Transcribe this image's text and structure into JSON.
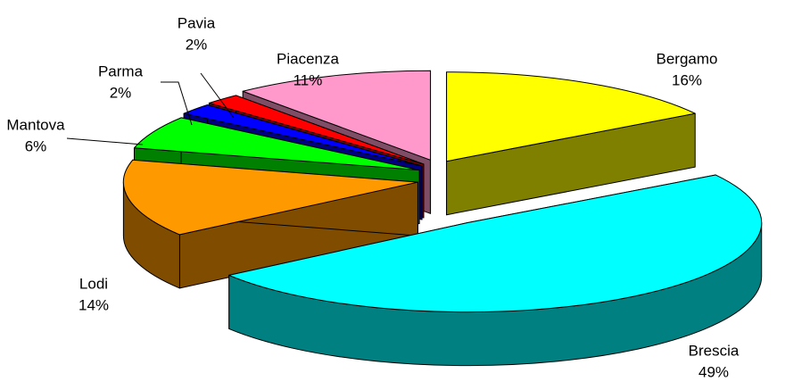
{
  "chart_data": {
    "type": "pie",
    "categories": [
      "Bergamo",
      "Brescia",
      "Lodi",
      "Mantova",
      "Parma",
      "Pavia",
      "Piacenza"
    ],
    "values": [
      16,
      49,
      14,
      6,
      2,
      2,
      11
    ],
    "value_labels": [
      "16%",
      "49%",
      "14%",
      "6%",
      "2%",
      "2%",
      "11%"
    ],
    "colors": [
      "#ffff00",
      "#00ffff",
      "#ff9900",
      "#00ff00",
      "#0000ff",
      "#ff0000",
      "#ff99cc"
    ]
  }
}
